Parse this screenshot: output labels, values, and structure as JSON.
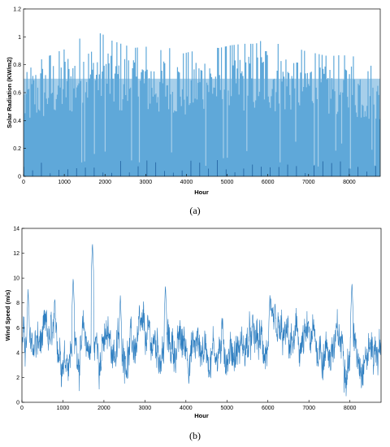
{
  "chart_data": [
    {
      "id": "solar",
      "type": "area",
      "caption": "(a)",
      "xlabel": "Hour",
      "ylabel": "Solar Radiation (KW/m2)",
      "xlim": [
        0,
        8760
      ],
      "ylim": [
        0,
        1.2
      ],
      "xticks": [
        "0",
        "1000",
        "2000",
        "3000",
        "4000",
        "5000",
        "6000",
        "7000",
        "8000"
      ],
      "yticks": [
        "0",
        "0.2",
        "0.4",
        "0.6",
        "0.8",
        "1",
        "1.2"
      ],
      "color": "#5fa8d9",
      "daily_peak_envelope": {
        "x": [
          0,
          300,
          600,
          900,
          1200,
          1450,
          1700,
          1900,
          2100,
          2400,
          2700,
          3000,
          3300,
          3600,
          3900,
          4200,
          4500,
          4800,
          5100,
          5400,
          5700,
          6000,
          6300,
          6600,
          6900,
          7200,
          7500,
          7800,
          8100,
          8400,
          8700
        ],
        "y": [
          0.72,
          0.82,
          0.86,
          0.9,
          0.93,
          1.01,
          0.97,
          1.03,
          0.98,
          0.95,
          0.92,
          0.93,
          0.9,
          0.92,
          0.88,
          0.9,
          0.93,
          0.92,
          0.94,
          0.95,
          0.95,
          1.0,
          0.94,
          0.93,
          0.9,
          0.88,
          0.86,
          0.87,
          0.86,
          0.85,
          0.72
        ]
      }
    },
    {
      "id": "wind",
      "type": "line",
      "caption": "(b)",
      "xlabel": "Hour",
      "ylabel": "Wind Speed (m/s)",
      "xlim": [
        0,
        8760
      ],
      "ylim": [
        0,
        14
      ],
      "xticks": [
        "0",
        "1000",
        "2000",
        "3000",
        "4000",
        "5000",
        "6000",
        "7000",
        "8000"
      ],
      "yticks": [
        "0",
        "2",
        "4",
        "6",
        "8",
        "10",
        "12",
        "14"
      ],
      "color": "#2f7fc1",
      "mean_approx": 4.5,
      "peak": {
        "x": 1720,
        "y": 12.9
      },
      "local_maxima": [
        {
          "x": 150,
          "y": 9.1
        },
        {
          "x": 1250,
          "y": 10.1
        },
        {
          "x": 1720,
          "y": 12.9
        },
        {
          "x": 2400,
          "y": 8.6
        },
        {
          "x": 3500,
          "y": 9.5
        },
        {
          "x": 6050,
          "y": 8.8
        },
        {
          "x": 8050,
          "y": 9.7
        }
      ]
    }
  ]
}
